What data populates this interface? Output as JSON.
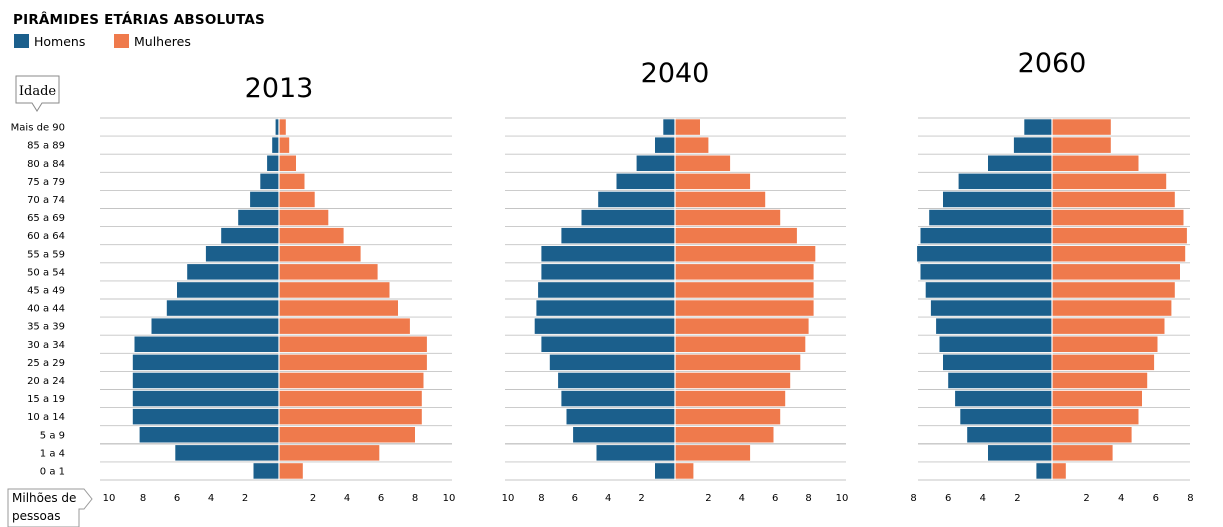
{
  "chart_data": {
    "type": "bar",
    "title": "PIRÂMIDES ETÁRIAS ABSOLUTAS",
    "legend": [
      {
        "label": "Homens",
        "color": "#1b5f8c"
      },
      {
        "label": "Mulheres",
        "color": "#ef7a4c"
      }
    ],
    "ylabel": "Idade",
    "xlabel": [
      "Milhões de",
      "pessoas"
    ],
    "categories": [
      "0 a 1",
      "1 a 4",
      "5 a 9",
      "10 a 14",
      "15 a 19",
      "20 a 24",
      "25 a 29",
      "30 a 34",
      "35 a 39",
      "40 a 44",
      "45 a 49",
      "50 a 54",
      "55 a 59",
      "60 a 64",
      "65 a 69",
      "70 a 74",
      "75 a 79",
      "80 a 84",
      "85 a 89",
      "Mais de 90"
    ],
    "panels": [
      {
        "year": "2013",
        "xlim": 10,
        "ticks": [
          10,
          8,
          6,
          4,
          2
        ],
        "series": [
          {
            "name": "Homens",
            "values": [
              1.5,
              6.1,
              8.2,
              8.6,
              8.6,
              8.6,
              8.6,
              8.5,
              7.5,
              6.6,
              6.0,
              5.4,
              4.3,
              3.4,
              2.4,
              1.7,
              1.1,
              0.7,
              0.4,
              0.2
            ]
          },
          {
            "name": "Mulheres",
            "values": [
              1.4,
              5.9,
              8.0,
              8.4,
              8.4,
              8.5,
              8.7,
              8.7,
              7.7,
              7.0,
              6.5,
              5.8,
              4.8,
              3.8,
              2.9,
              2.1,
              1.5,
              1.0,
              0.6,
              0.4
            ]
          }
        ]
      },
      {
        "year": "2040",
        "xlim": 10,
        "ticks": [
          10,
          8,
          6,
          4,
          2
        ],
        "series": [
          {
            "name": "Homens",
            "values": [
              1.2,
              4.7,
              6.1,
              6.5,
              6.8,
              7.0,
              7.5,
              8.0,
              8.4,
              8.3,
              8.2,
              8.0,
              8.0,
              6.8,
              5.6,
              4.6,
              3.5,
              2.3,
              1.2,
              0.7
            ]
          },
          {
            "name": "Mulheres",
            "values": [
              1.1,
              4.5,
              5.9,
              6.3,
              6.6,
              6.9,
              7.5,
              7.8,
              8.0,
              8.3,
              8.3,
              8.3,
              8.4,
              7.3,
              6.3,
              5.4,
              4.5,
              3.3,
              2.0,
              1.5
            ]
          }
        ]
      },
      {
        "year": "2060",
        "xlim": 8,
        "ticks": [
          8,
          6,
          4,
          2
        ],
        "series": [
          {
            "name": "Homens",
            "values": [
              0.9,
              3.7,
              4.9,
              5.3,
              5.6,
              6.0,
              6.3,
              6.5,
              6.7,
              7.0,
              7.3,
              7.6,
              7.8,
              7.6,
              7.1,
              6.3,
              5.4,
              3.7,
              2.2,
              1.6
            ]
          },
          {
            "name": "Mulheres",
            "values": [
              0.8,
              3.5,
              4.6,
              5.0,
              5.2,
              5.5,
              5.9,
              6.1,
              6.5,
              6.9,
              7.1,
              7.4,
              7.7,
              7.8,
              7.6,
              7.1,
              6.6,
              5.0,
              3.4,
              3.4
            ]
          }
        ]
      }
    ],
    "colors": {
      "men": "#1b5f8c",
      "women": "#ef7a4c",
      "gridline": "#c4c4c4"
    }
  }
}
